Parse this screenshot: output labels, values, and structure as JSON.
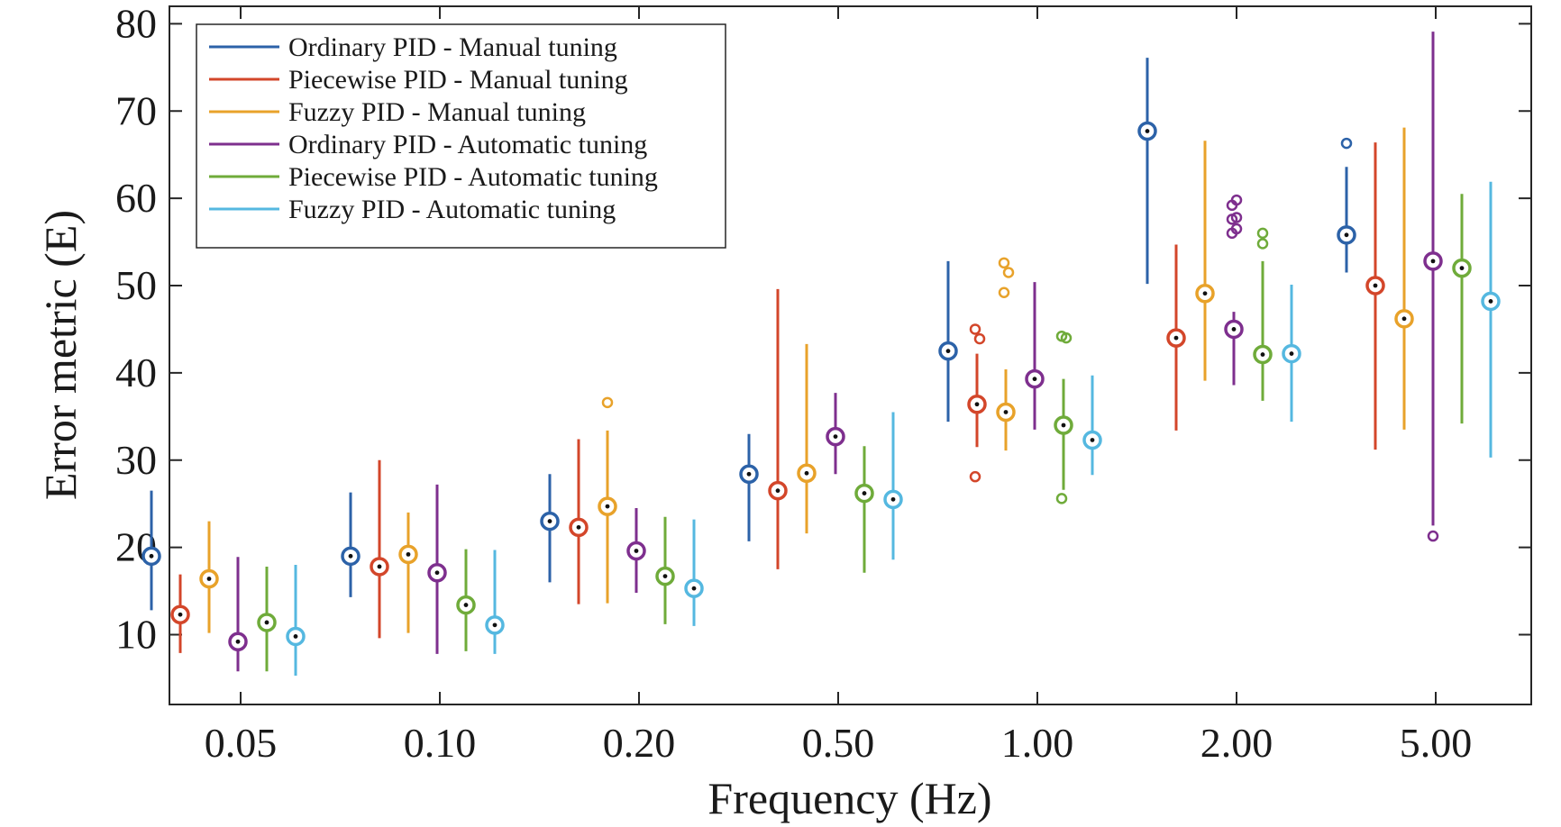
{
  "chart_data": {
    "type": "boxplot",
    "title": "",
    "xlabel": "Frequency (Hz)",
    "ylabel": "Error metric (E)",
    "ylim": [
      2,
      82
    ],
    "yticks": [
      10,
      20,
      30,
      40,
      50,
      60,
      70,
      80
    ],
    "categories": [
      "0.05",
      "0.10",
      "0.20",
      "0.50",
      "1.00",
      "2.00",
      "5.00"
    ],
    "grid": false,
    "legend_position": "top-left",
    "series": [
      {
        "name": "Ordinary PID - Manual tuning",
        "color": "#2c62a8",
        "boxes": [
          {
            "min": 12.8,
            "max": 26.5,
            "median": 19.0,
            "outliers": []
          },
          {
            "min": 14.3,
            "max": 26.3,
            "median": 19.0,
            "outliers": []
          },
          {
            "min": 16.0,
            "max": 28.4,
            "median": 23.0,
            "outliers": []
          },
          {
            "min": 20.7,
            "max": 33.0,
            "median": 28.4,
            "outliers": []
          },
          {
            "min": 34.4,
            "max": 52.8,
            "median": 42.5,
            "outliers": []
          },
          {
            "min": 50.2,
            "max": 76.1,
            "median": 67.7,
            "outliers": []
          },
          {
            "min": 51.5,
            "max": 63.6,
            "median": 55.8,
            "outliers": [
              66.3
            ]
          }
        ]
      },
      {
        "name": "Piecewise PID - Manual tuning",
        "color": "#d3462a",
        "boxes": [
          {
            "min": 7.9,
            "max": 16.9,
            "median": 12.3,
            "outliers": []
          },
          {
            "min": 9.6,
            "max": 30.0,
            "median": 17.8,
            "outliers": []
          },
          {
            "min": 13.5,
            "max": 32.4,
            "median": 22.3,
            "outliers": []
          },
          {
            "min": 17.5,
            "max": 49.6,
            "median": 26.5,
            "outliers": []
          },
          {
            "min": 31.5,
            "max": 42.2,
            "median": 36.4,
            "outliers": [
              28.1,
              43.9,
              45.0
            ]
          },
          {
            "min": 33.4,
            "max": 54.7,
            "median": 44.0,
            "outliers": []
          },
          {
            "min": 31.2,
            "max": 66.4,
            "median": 50.0,
            "outliers": []
          }
        ]
      },
      {
        "name": "Fuzzy PID - Manual tuning",
        "color": "#e8a22a",
        "boxes": [
          {
            "min": 10.2,
            "max": 23.0,
            "median": 16.4,
            "outliers": []
          },
          {
            "min": 10.2,
            "max": 24.0,
            "median": 19.2,
            "outliers": []
          },
          {
            "min": 13.6,
            "max": 33.4,
            "median": 24.7,
            "outliers": [
              36.6
            ]
          },
          {
            "min": 21.6,
            "max": 43.3,
            "median": 28.5,
            "outliers": []
          },
          {
            "min": 31.1,
            "max": 40.4,
            "median": 35.5,
            "outliers": [
              49.2,
              51.5,
              52.6
            ]
          },
          {
            "min": 39.1,
            "max": 66.6,
            "median": 49.1,
            "outliers": []
          },
          {
            "min": 33.5,
            "max": 68.1,
            "median": 46.2,
            "outliers": []
          }
        ]
      },
      {
        "name": "Ordinary PID - Automatic tuning",
        "color": "#7e2f8e",
        "boxes": [
          {
            "min": 5.8,
            "max": 18.9,
            "median": 9.2,
            "outliers": []
          },
          {
            "min": 7.8,
            "max": 27.2,
            "median": 17.1,
            "outliers": []
          },
          {
            "min": 14.8,
            "max": 24.5,
            "median": 19.6,
            "outliers": []
          },
          {
            "min": 28.4,
            "max": 37.7,
            "median": 32.7,
            "outliers": []
          },
          {
            "min": 33.5,
            "max": 50.4,
            "median": 39.3,
            "outliers": []
          },
          {
            "min": 38.6,
            "max": 47.0,
            "median": 45.0,
            "outliers": [
              56.0,
              56.5,
              57.6,
              57.8,
              59.2,
              59.8
            ]
          },
          {
            "min": 22.5,
            "max": 79.1,
            "median": 52.8,
            "outliers": [
              21.3
            ]
          }
        ]
      },
      {
        "name": "Piecewise PID - Automatic tuning",
        "color": "#6fab3a",
        "boxes": [
          {
            "min": 5.8,
            "max": 17.8,
            "median": 11.4,
            "outliers": []
          },
          {
            "min": 8.1,
            "max": 19.8,
            "median": 13.4,
            "outliers": []
          },
          {
            "min": 11.2,
            "max": 23.5,
            "median": 16.7,
            "outliers": []
          },
          {
            "min": 17.1,
            "max": 31.6,
            "median": 26.2,
            "outliers": []
          },
          {
            "min": 26.6,
            "max": 39.3,
            "median": 34.0,
            "outliers": [
              25.6,
              44.0,
              44.2
            ]
          },
          {
            "min": 36.8,
            "max": 52.8,
            "median": 42.1,
            "outliers": [
              54.8,
              56.0
            ]
          },
          {
            "min": 34.2,
            "max": 60.5,
            "median": 52.0,
            "outliers": []
          }
        ]
      },
      {
        "name": "Fuzzy PID - Automatic tuning",
        "color": "#55b8e0",
        "boxes": [
          {
            "min": 5.3,
            "max": 18.0,
            "median": 9.8,
            "outliers": []
          },
          {
            "min": 7.8,
            "max": 19.7,
            "median": 11.1,
            "outliers": []
          },
          {
            "min": 11.0,
            "max": 23.2,
            "median": 15.3,
            "outliers": []
          },
          {
            "min": 18.6,
            "max": 35.5,
            "median": 25.5,
            "outliers": []
          },
          {
            "min": 28.3,
            "max": 39.7,
            "median": 32.3,
            "outliers": []
          },
          {
            "min": 34.4,
            "max": 50.1,
            "median": 42.2,
            "outliers": []
          },
          {
            "min": 30.3,
            "max": 61.9,
            "median": 48.2,
            "outliers": []
          }
        ]
      }
    ]
  }
}
